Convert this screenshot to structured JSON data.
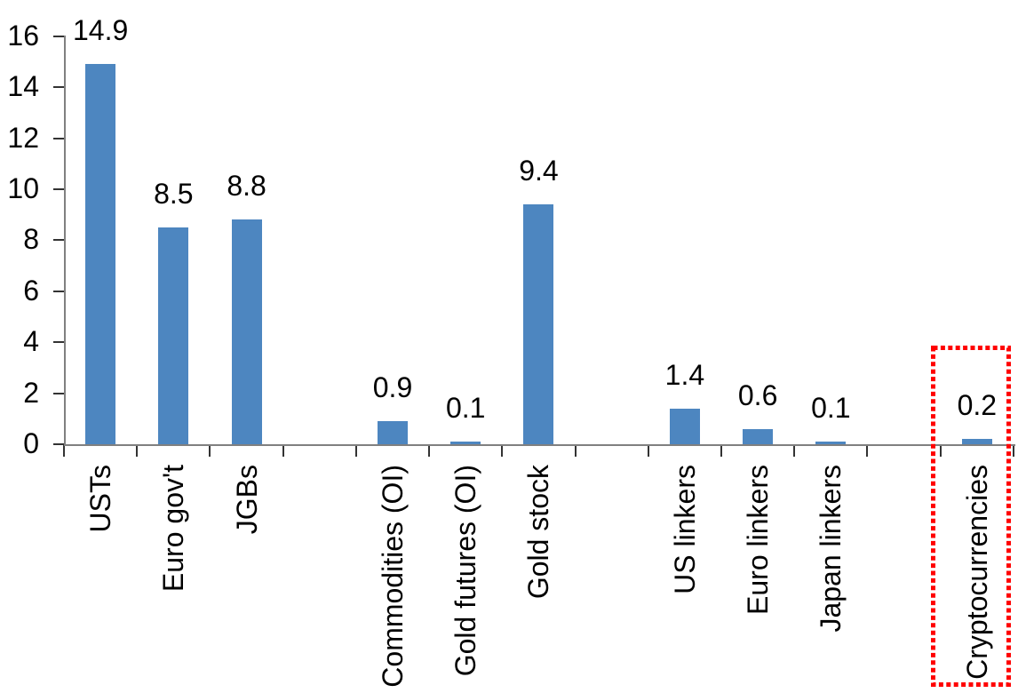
{
  "chart_data": {
    "type": "bar",
    "title": "",
    "xlabel": "",
    "ylabel": "",
    "categories": [
      "USTs",
      "Euro gov't",
      "JGBs",
      "Commodities (OI)",
      "Gold futures (OI)",
      "Gold stock",
      "US linkers",
      "Euro linkers",
      "Japan linkers",
      "Cryptocurrencies"
    ],
    "values": [
      14.9,
      8.5,
      8.8,
      0.9,
      0.1,
      9.4,
      1.4,
      0.6,
      0.1,
      0.2
    ],
    "data_labels": [
      "14.9",
      "8.5",
      "8.8",
      "0.9",
      "0.1",
      "9.4",
      "1.4",
      "0.6",
      "0.1",
      "0.2"
    ],
    "slot_of_category": [
      0,
      1,
      2,
      4,
      5,
      6,
      8,
      9,
      10,
      12
    ],
    "total_slots": 13,
    "group_gaps_after": [
      "JGBs",
      "Gold stock",
      "Japan linkers"
    ],
    "ylim": [
      0,
      16
    ],
    "yticks": [
      0,
      2,
      4,
      6,
      8,
      10,
      12,
      14,
      16
    ],
    "ytick_labels": [
      "0",
      "2",
      "4",
      "6",
      "8",
      "10",
      "12",
      "14",
      "16"
    ],
    "grid": false,
    "legend": "none",
    "bar_color": "#4D86C0",
    "axis_line_color": "#808080",
    "tick_color": "#333333",
    "text_color": "#000000",
    "highlight": {
      "category": "Cryptocurrencies",
      "shape": "dotted-rectangle",
      "color": "#FF0000"
    }
  }
}
